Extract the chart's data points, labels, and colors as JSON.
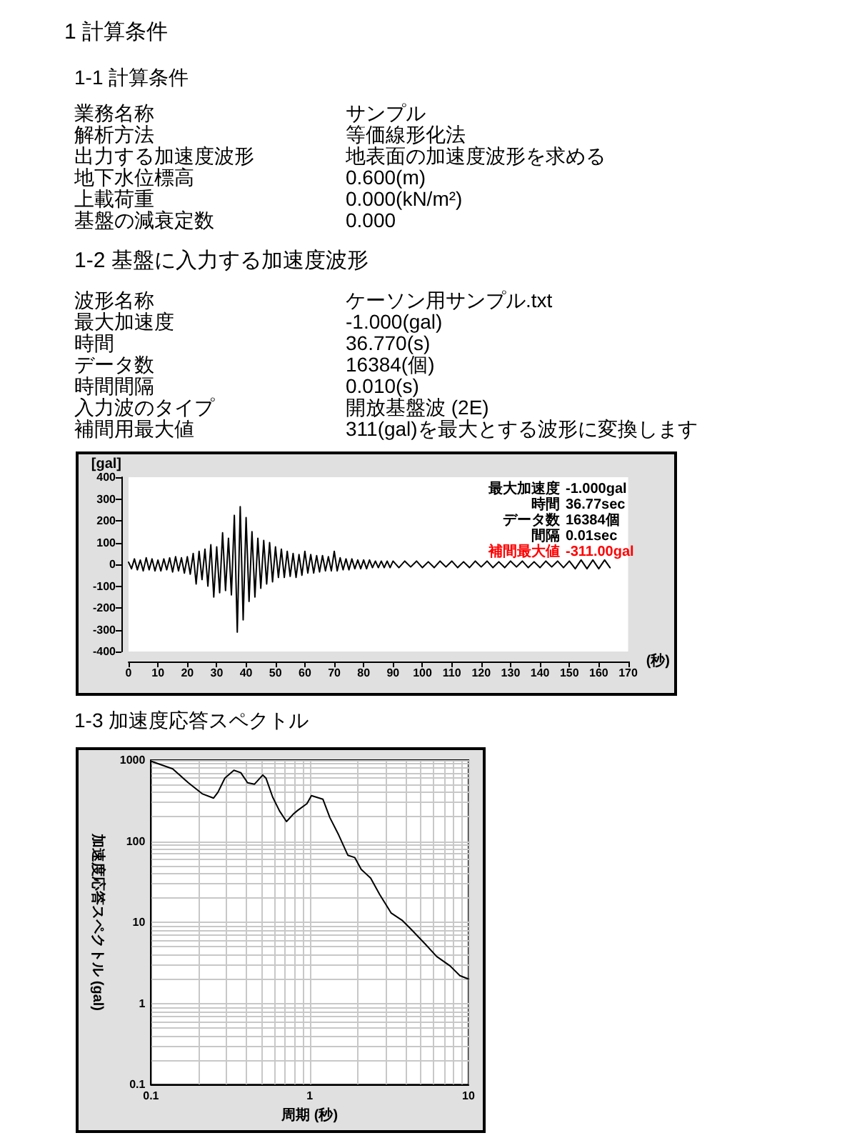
{
  "chart_data": [
    {
      "type": "other",
      "title": "1 計算条件",
      "subtitle": "1-1 計算条件",
      "annotations": [
        "業務名称",
        "サンプル",
        "解析方法",
        "等価線形化法",
        "出力する加速度波形",
        "地表面の加速度波形を求める",
        "地下水位標高",
        "0.600(m)",
        "上載荷重",
        "0.000(kN/m²)",
        "基盤の減衰定数",
        "0.000"
      ]
    },
    {
      "type": "other",
      "title": "1-2 基盤に入力する加速度波形",
      "annotations": [
        "波形名称",
        "ケーソン用サンプル.txt",
        "最大加速度",
        "-1.000(gal)",
        "時間",
        "36.770(s)",
        "データ数",
        "16384(個)",
        "時間間隔",
        "0.010(s)",
        "入力波のタイプ",
        "開放基盤波 (2E)",
        "補間用最大値",
        "311(gal)を最大とする波形に変換します"
      ]
    },
    {
      "type": "line",
      "color": "#000000",
      "marker": "none",
      "ylabel": "[gal]",
      "xlabel": "(秒)",
      "xlim": [
        0,
        170
      ],
      "xticks": [
        0,
        10,
        20,
        30,
        40,
        50,
        60,
        70,
        80,
        90,
        100,
        110,
        120,
        130,
        140,
        150,
        160,
        170
      ],
      "ylim": [
        -400,
        400
      ],
      "yticks": [
        -400,
        -300,
        -200,
        -100,
        0,
        100,
        200,
        300,
        400
      ],
      "annotations": [
        "最大加速度",
        "-1.000gal",
        "時間",
        "36.77sec",
        "データ数",
        "16384個",
        "間隔",
        "0.01sec",
        "補間最大値",
        "-311.00gal"
      ],
      "x": [
        0,
        1,
        2,
        3,
        4,
        5,
        6,
        7,
        8,
        9,
        10,
        11,
        12,
        13,
        14,
        15,
        16,
        17,
        18,
        19,
        20,
        21,
        22,
        23,
        24,
        25,
        26,
        27,
        28,
        29,
        30,
        31,
        32,
        33,
        34,
        35,
        36,
        37,
        38,
        39,
        40,
        41,
        42,
        43,
        44,
        45,
        46,
        47,
        48,
        49,
        50,
        51,
        52,
        53,
        54,
        55,
        56,
        57,
        58,
        59,
        60,
        61,
        62,
        63,
        64,
        65,
        66,
        67,
        68,
        69,
        70,
        71,
        72,
        73,
        74,
        75,
        76,
        77,
        78,
        79,
        80,
        81,
        82,
        83,
        84,
        85,
        86,
        87,
        88,
        89,
        90,
        92,
        94,
        96,
        98,
        100,
        102,
        104,
        106,
        108,
        110,
        112,
        114,
        116,
        118,
        120,
        122,
        124,
        126,
        128,
        130,
        132,
        134,
        136,
        138,
        140,
        142,
        144,
        146,
        148,
        150,
        152,
        154,
        156,
        158,
        160,
        162,
        163.84
      ],
      "values": [
        10,
        -20,
        25,
        -25,
        20,
        -30,
        30,
        -25,
        25,
        -30,
        20,
        -30,
        25,
        -25,
        30,
        -35,
        35,
        -30,
        30,
        -40,
        35,
        -45,
        50,
        -90,
        60,
        -70,
        70,
        -100,
        90,
        -150,
        80,
        -130,
        145,
        -120,
        120,
        -140,
        225,
        -311,
        265,
        -255,
        215,
        -170,
        150,
        -150,
        120,
        -110,
        110,
        -90,
        100,
        -80,
        80,
        -60,
        70,
        -60,
        60,
        -55,
        50,
        -60,
        45,
        -50,
        60,
        -40,
        45,
        -40,
        40,
        -35,
        40,
        -30,
        35,
        -30,
        60,
        -30,
        30,
        -25,
        25,
        -25,
        25,
        -20,
        20,
        -20,
        20,
        -20,
        20,
        -15,
        15,
        -15,
        15,
        -15,
        15,
        -15,
        15,
        -15,
        15,
        -12,
        15,
        -15,
        12,
        -15,
        15,
        -12,
        15,
        -15,
        12,
        -15,
        15,
        -12,
        15,
        -15,
        12,
        -15,
        15,
        -12,
        15,
        -15,
        12,
        -15,
        15,
        -12,
        15,
        -15,
        15,
        -20,
        20,
        -20,
        20,
        -20,
        20,
        -15
      ]
    },
    {
      "type": "line",
      "title": "1-3 加速度応答スペクトル",
      "color": "#000000",
      "marker": "none",
      "log": "xy",
      "grid": true,
      "xlabel": "周期 (秒)",
      "ylabel": "加速度応答スペクトル (gal)",
      "xlim": [
        0.1,
        10
      ],
      "xticks": [
        0.1,
        1,
        10
      ],
      "ylim": [
        0.1,
        1000
      ],
      "yticks": [
        0.1,
        1,
        10,
        100,
        1000
      ],
      "x": [
        0.1,
        0.137,
        0.172,
        0.21,
        0.248,
        0.264,
        0.292,
        0.333,
        0.368,
        0.406,
        0.449,
        0.506,
        0.53,
        0.584,
        0.646,
        0.714,
        0.786,
        0.84,
        0.96,
        1.025,
        1.21,
        1.34,
        1.52,
        1.74,
        1.92,
        2.11,
        2.42,
        2.76,
        3.26,
        3.84,
        4.38,
        5.34,
        6.3,
        7.66,
        8.83,
        10
      ],
      "values": [
        970,
        780,
        525,
        385,
        340,
        400,
        600,
        750,
        700,
        525,
        505,
        655,
        600,
        350,
        235,
        175,
        215,
        240,
        290,
        365,
        330,
        195,
        120,
        67,
        63,
        45,
        35,
        22,
        13,
        10.5,
        8.1,
        5.4,
        3.8,
        2.9,
        2.2,
        2.0
      ]
    }
  ]
}
